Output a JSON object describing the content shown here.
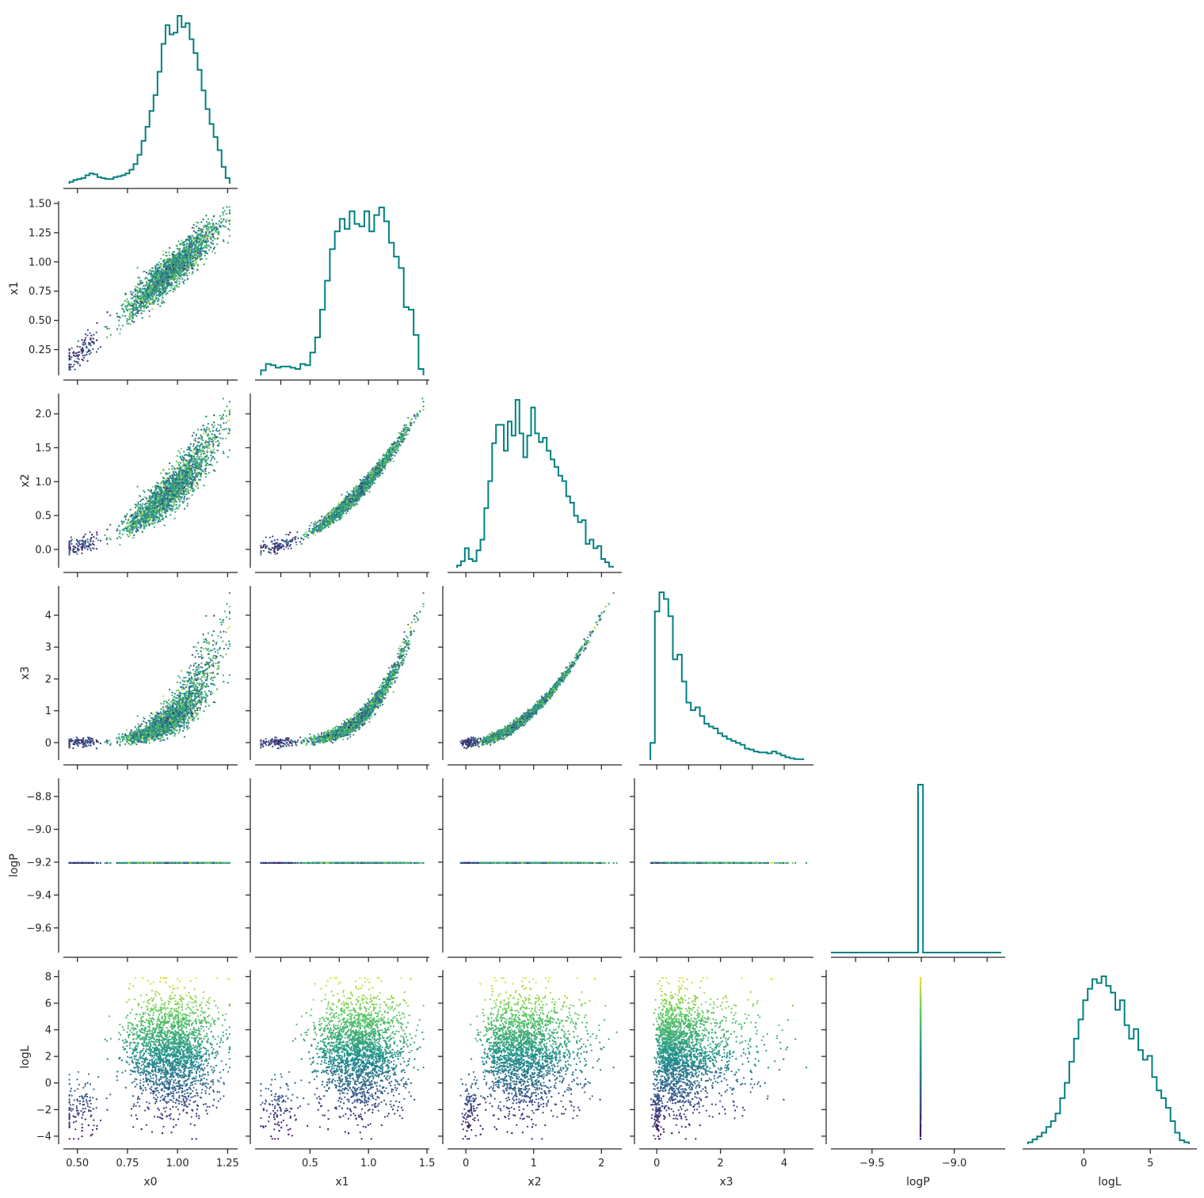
{
  "chart_data": {
    "type": "corner-pairplot",
    "variables": [
      "x0",
      "x1",
      "x2",
      "x3",
      "logP",
      "logL"
    ],
    "xlabels": [
      "x0",
      "x1",
      "x2",
      "x3",
      "logP",
      "logL"
    ],
    "ylabels": [
      "",
      "x1",
      "x2",
      "x3",
      "logP",
      "logL"
    ],
    "colormap": [
      "#440154",
      "#3b528b",
      "#21918c",
      "#5ec962",
      "#fde725"
    ],
    "color_by": "logL",
    "hist_color": "#008080",
    "n_samples": 3000,
    "grid": false,
    "ranges": {
      "x0": [
        0.43,
        1.3
      ],
      "x1": [
        0.03,
        1.52
      ],
      "x2": [
        -0.27,
        2.3
      ],
      "x3": [
        -0.55,
        4.92
      ],
      "logP": [
        -9.75,
        -8.69
      ],
      "logL": [
        -4.6,
        8.5
      ]
    },
    "ticks": {
      "x0": [
        "0.50",
        "0.75",
        "1.00",
        "1.25"
      ],
      "x1": [
        "0.25",
        "0.50",
        "0.75",
        "1.00",
        "1.25",
        "1.50"
      ],
      "x1_bottom": [
        "0.5",
        "1.0",
        "1.5"
      ],
      "x2": [
        "0.0",
        "0.5",
        "1.0",
        "1.5",
        "2.0"
      ],
      "x2_bottom": [
        "0",
        "1",
        "2"
      ],
      "x3": [
        "0",
        "1",
        "2",
        "3",
        "4"
      ],
      "x3_bottom": [
        "0",
        "2",
        "4"
      ],
      "logP": [
        "−8.8",
        "−9.0",
        "−9.2",
        "−9.4",
        "−9.6"
      ],
      "logP_bottom": [
        "−9.5",
        "−9.0"
      ],
      "logL": [
        "8",
        "6",
        "4",
        "2",
        "0",
        "−2",
        "−4"
      ],
      "logL_bottom": [
        "0",
        "5"
      ]
    },
    "histograms": {
      "x0": {
        "range": [
          0.46,
          1.26
        ],
        "counts": [
          2,
          4,
          5,
          6,
          9,
          11,
          10,
          7,
          6,
          5,
          5,
          7,
          8,
          9,
          11,
          15,
          21,
          31,
          46,
          61,
          78,
          95,
          120,
          150,
          170,
          160,
          162,
          180,
          168,
          172,
          155,
          140,
          122,
          100,
          80,
          64,
          50,
          36,
          18,
          6
        ]
      },
      "x1": {
        "range": [
          0.08,
          1.47
        ],
        "counts": [
          4,
          9,
          8,
          6,
          7,
          7,
          6,
          5,
          9,
          8,
          18,
          30,
          52,
          75,
          100,
          114,
          124,
          116,
          130,
          120,
          118,
          130,
          114,
          127,
          133,
          122,
          105,
          94,
          85,
          54,
          52,
          32,
          5
        ]
      },
      "x2": {
        "range": [
          -0.13,
          2.17
        ],
        "counts": [
          2,
          6,
          18,
          8,
          6,
          16,
          26,
          55,
          80,
          115,
          132,
          132,
          108,
          135,
          122,
          155,
          124,
          102,
          122,
          148,
          124,
          116,
          120,
          108,
          100,
          93,
          85,
          80,
          66,
          60,
          48,
          42,
          44,
          22,
          26,
          18,
          20,
          8,
          5,
          1
        ]
      },
      "x3": {
        "range": [
          -0.2,
          4.6
        ],
        "counts": [
          18,
          155,
          175,
          168,
          150,
          105,
          110,
          82,
          60,
          52,
          55,
          46,
          38,
          35,
          33,
          28,
          25,
          22,
          20,
          18,
          16,
          12,
          11,
          9,
          8,
          8,
          7,
          9,
          7,
          5,
          3,
          2,
          1,
          1
        ]
      },
      "logP": {
        "range": [
          -9.22,
          -9.19
        ],
        "counts": [
          2997
        ]
      },
      "logL": {
        "range": [
          -4.2,
          7.9
        ],
        "counts": [
          2,
          5,
          8,
          12,
          18,
          24,
          32,
          48,
          64,
          86,
          110,
          130,
          150,
          162,
          172,
          168,
          175,
          165,
          158,
          140,
          150,
          124,
          110,
          120,
          98,
          88,
          92,
          70,
          56,
          48,
          38,
          24,
          12,
          4,
          2
        ]
      }
    }
  }
}
